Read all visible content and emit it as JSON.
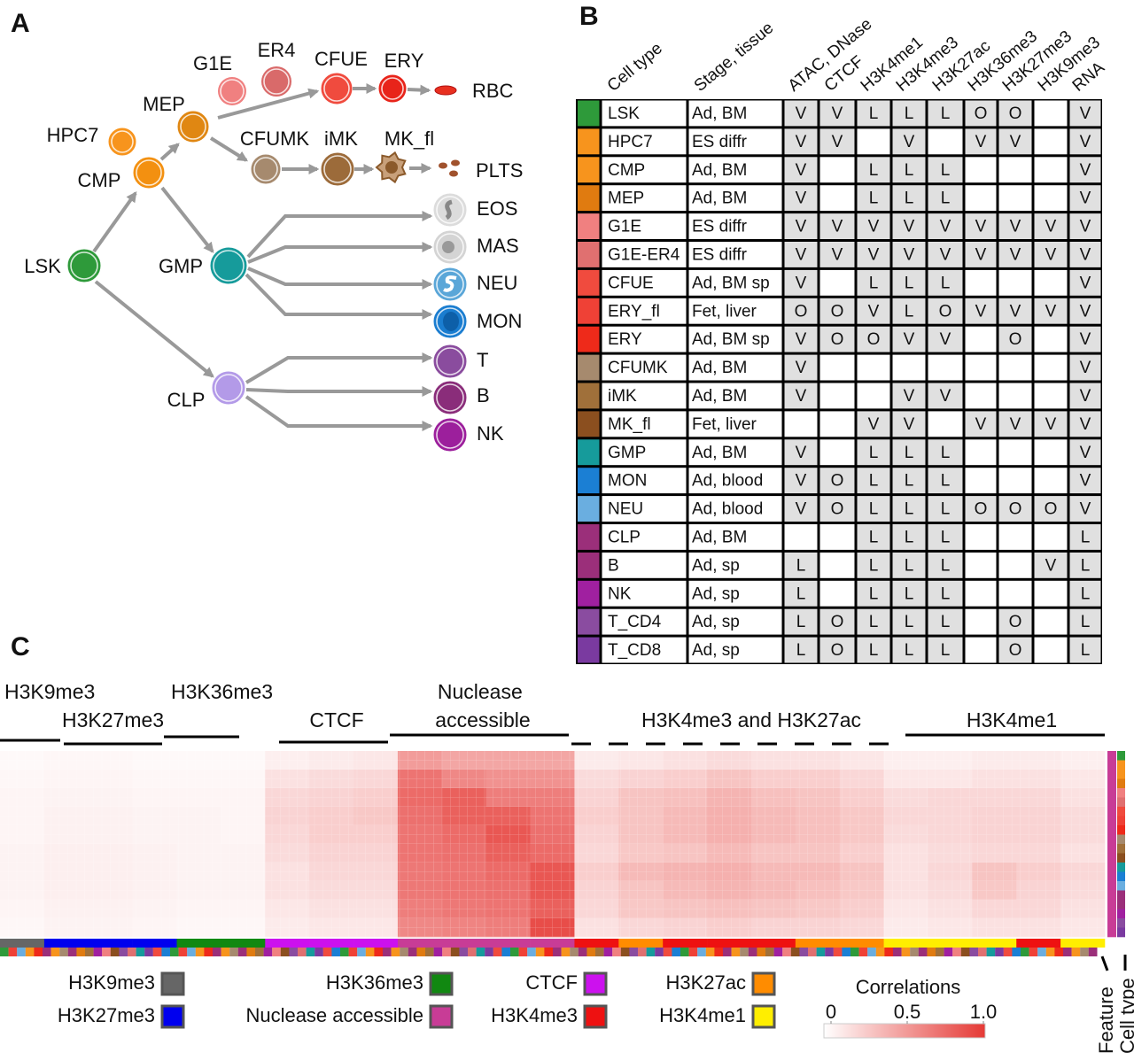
{
  "panels": {
    "a": "A",
    "b": "B",
    "c": "C"
  },
  "lineage": {
    "nodes": [
      {
        "label": "LSK",
        "color": "#2e9a3a"
      },
      {
        "label": "HPC7",
        "color": "#f7941d"
      },
      {
        "label": "CMP",
        "color": "#f39010"
      },
      {
        "label": "MEP",
        "color": "#e08712"
      },
      {
        "label": "G1E",
        "color": "#f08080"
      },
      {
        "label": "ER4",
        "color": "#d96a6a"
      },
      {
        "label": "CFUE",
        "color": "#f04b3e"
      },
      {
        "label": "ERY",
        "color": "#e8241a"
      },
      {
        "label": "RBC",
        "color": "#e83020"
      },
      {
        "label": "CFUMK",
        "color": "#a68a6e"
      },
      {
        "label": "iMK",
        "color": "#9c6b3a"
      },
      {
        "label": "MK_fl",
        "color": "#8b5a2b"
      },
      {
        "label": "PLTS",
        "color": "#a0522d"
      },
      {
        "label": "GMP",
        "color": "#169b9b"
      },
      {
        "label": "EOS",
        "color": "#dcdcdc"
      },
      {
        "label": "MAS",
        "color": "#d4d4d4"
      },
      {
        "label": "NEU",
        "color": "#5aa6d8"
      },
      {
        "label": "MON",
        "color": "#1a7dd0"
      },
      {
        "label": "CLP",
        "color": "#b39ae8"
      },
      {
        "label": "T",
        "color": "#8a4c9e"
      },
      {
        "label": "B",
        "color": "#8a2d7a"
      },
      {
        "label": "NK",
        "color": "#9c1f9c"
      }
    ]
  },
  "table": {
    "headers": [
      "Cell type",
      "Stage, tissue",
      "ATAC, DNase",
      "CTCF",
      "H3K4me1",
      "H3K4me3",
      "H3K27ac",
      "H3K36me3",
      "H3K27me3",
      "H3K9me3",
      "RNA"
    ],
    "rows": [
      {
        "color": "#2e9a3a",
        "cells": [
          "LSK",
          "Ad, BM",
          "V",
          "V",
          "L",
          "L",
          "L",
          "O",
          "O",
          null,
          "V"
        ]
      },
      {
        "color": "#f7941d",
        "cells": [
          "HPC7",
          "ES diffr",
          "V",
          "V",
          null,
          "V",
          null,
          "V",
          "V",
          null,
          "V"
        ]
      },
      {
        "color": "#f7941d",
        "cells": [
          "CMP",
          "Ad, BM",
          "V",
          null,
          "L",
          "L",
          "L",
          null,
          null,
          null,
          "V"
        ]
      },
      {
        "color": "#e07b10",
        "cells": [
          "MEP",
          "Ad, BM",
          "V",
          null,
          "L",
          "L",
          "L",
          null,
          null,
          null,
          "V"
        ]
      },
      {
        "color": "#f08080",
        "cells": [
          "G1E",
          "ES diffr",
          "V",
          "V",
          "V",
          "V",
          "V",
          "V",
          "V",
          "V",
          "V"
        ]
      },
      {
        "color": "#e07070",
        "cells": [
          "G1E-ER4",
          "ES diffr",
          "V",
          "V",
          "V",
          "V",
          "V",
          "V",
          "V",
          "V",
          "V"
        ]
      },
      {
        "color": "#f04b3e",
        "cells": [
          "CFUE",
          "Ad, BM sp",
          "V",
          null,
          "L",
          "L",
          "L",
          null,
          null,
          null,
          "V"
        ]
      },
      {
        "color": "#ef4136",
        "cells": [
          "ERY_fl",
          "Fet, liver",
          "O",
          "O",
          "V",
          "L",
          "O",
          "V",
          "V",
          "V",
          "V"
        ]
      },
      {
        "color": "#ee2a1a",
        "cells": [
          "ERY",
          "Ad, BM sp",
          "V",
          "O",
          "O",
          "V",
          "V",
          null,
          "O",
          null,
          "V"
        ]
      },
      {
        "color": "#a68a6e",
        "cells": [
          "CFUMK",
          "Ad, BM",
          "V",
          null,
          null,
          null,
          null,
          null,
          null,
          null,
          "V"
        ]
      },
      {
        "color": "#a0703a",
        "cells": [
          "iMK",
          "Ad, BM",
          "V",
          null,
          null,
          "V",
          "V",
          null,
          null,
          null,
          "V"
        ]
      },
      {
        "color": "#8b4f1f",
        "cells": [
          "MK_fl",
          "Fet, liver",
          null,
          null,
          "V",
          "V",
          null,
          "V",
          "V",
          "V",
          "V"
        ]
      },
      {
        "color": "#169b9b",
        "cells": [
          "GMP",
          "Ad, BM",
          "V",
          null,
          "L",
          "L",
          "L",
          null,
          null,
          null,
          "V"
        ]
      },
      {
        "color": "#1b7fd4",
        "cells": [
          "MON",
          "Ad, blood",
          "V",
          "O",
          "L",
          "L",
          "L",
          null,
          null,
          null,
          "V"
        ]
      },
      {
        "color": "#6aaee0",
        "cells": [
          "NEU",
          "Ad, blood",
          "V",
          "O",
          "L",
          "L",
          "L",
          "O",
          "O",
          "O",
          "V"
        ]
      },
      {
        "color": "#9b2f7a",
        "cells": [
          "CLP",
          "Ad, BM",
          null,
          null,
          "L",
          "L",
          "L",
          null,
          null,
          null,
          "L"
        ]
      },
      {
        "color": "#9b2f7a",
        "cells": [
          "B",
          "Ad, sp",
          "L",
          null,
          "L",
          "L",
          "L",
          null,
          null,
          "V",
          "L"
        ]
      },
      {
        "color": "#a020a0",
        "cells": [
          "NK",
          "Ad, sp",
          "L",
          null,
          "L",
          "L",
          "L",
          null,
          null,
          null,
          "L"
        ]
      },
      {
        "color": "#8a4ca0",
        "cells": [
          "T_CD4",
          "Ad, sp",
          "L",
          "O",
          "L",
          "L",
          "L",
          null,
          "O",
          null,
          "L"
        ]
      },
      {
        "color": "#7a3aa0",
        "cells": [
          "T_CD8",
          "Ad, sp",
          "L",
          "O",
          "L",
          "L",
          "L",
          null,
          "O",
          null,
          "L"
        ]
      }
    ]
  },
  "heatmap": {
    "group_labels": [
      "H3K9me3",
      "H3K27me3",
      "H3K36me3",
      "CTCF",
      "Nuclease accessible",
      "H3K4me3 and H3K27ac",
      "H3K4me1"
    ],
    "low_color": "#ffffff",
    "high_color": "#e53935",
    "values": [
      [
        0.03,
        0.04,
        0.04,
        0.03,
        0.03,
        0.03,
        0.08,
        0.1,
        0.12,
        0.5,
        0.45,
        0.45,
        0.45,
        0.1,
        0.12,
        0.15,
        0.18,
        0.15,
        0.15,
        0.12,
        0.08,
        0.08,
        0.1,
        0.1,
        0.08
      ],
      [
        0.04,
        0.05,
        0.05,
        0.04,
        0.04,
        0.04,
        0.15,
        0.18,
        0.2,
        0.7,
        0.6,
        0.55,
        0.55,
        0.18,
        0.22,
        0.25,
        0.3,
        0.25,
        0.25,
        0.2,
        0.12,
        0.12,
        0.15,
        0.15,
        0.12
      ],
      [
        0.05,
        0.06,
        0.06,
        0.05,
        0.05,
        0.05,
        0.2,
        0.22,
        0.25,
        0.75,
        0.8,
        0.65,
        0.65,
        0.22,
        0.3,
        0.32,
        0.38,
        0.32,
        0.3,
        0.25,
        0.18,
        0.2,
        0.2,
        0.2,
        0.15
      ],
      [
        0.05,
        0.07,
        0.07,
        0.06,
        0.06,
        0.05,
        0.22,
        0.25,
        0.28,
        0.72,
        0.8,
        0.8,
        0.7,
        0.25,
        0.3,
        0.35,
        0.4,
        0.35,
        0.32,
        0.28,
        0.2,
        0.2,
        0.22,
        0.22,
        0.18
      ],
      [
        0.05,
        0.07,
        0.07,
        0.06,
        0.06,
        0.05,
        0.2,
        0.25,
        0.25,
        0.7,
        0.75,
        0.85,
        0.72,
        0.22,
        0.3,
        0.35,
        0.4,
        0.35,
        0.32,
        0.28,
        0.18,
        0.2,
        0.22,
        0.22,
        0.18
      ],
      [
        0.06,
        0.08,
        0.08,
        0.07,
        0.06,
        0.06,
        0.18,
        0.22,
        0.22,
        0.7,
        0.72,
        0.8,
        0.75,
        0.2,
        0.28,
        0.3,
        0.35,
        0.3,
        0.3,
        0.25,
        0.15,
        0.18,
        0.2,
        0.2,
        0.15
      ],
      [
        0.06,
        0.08,
        0.08,
        0.07,
        0.06,
        0.06,
        0.15,
        0.2,
        0.2,
        0.68,
        0.7,
        0.75,
        0.85,
        0.25,
        0.35,
        0.38,
        0.4,
        0.35,
        0.35,
        0.3,
        0.15,
        0.2,
        0.3,
        0.25,
        0.2
      ],
      [
        0.06,
        0.08,
        0.08,
        0.07,
        0.06,
        0.06,
        0.15,
        0.18,
        0.18,
        0.68,
        0.7,
        0.72,
        0.85,
        0.22,
        0.3,
        0.35,
        0.38,
        0.35,
        0.32,
        0.28,
        0.15,
        0.18,
        0.28,
        0.22,
        0.18
      ],
      [
        0.05,
        0.07,
        0.07,
        0.06,
        0.05,
        0.05,
        0.12,
        0.15,
        0.15,
        0.65,
        0.68,
        0.7,
        0.8,
        0.2,
        0.28,
        0.3,
        0.32,
        0.3,
        0.28,
        0.25,
        0.12,
        0.15,
        0.2,
        0.2,
        0.15
      ],
      [
        0.04,
        0.06,
        0.06,
        0.05,
        0.04,
        0.04,
        0.1,
        0.12,
        0.12,
        0.6,
        0.62,
        0.65,
        0.9,
        0.15,
        0.2,
        0.22,
        0.25,
        0.22,
        0.22,
        0.2,
        0.1,
        0.12,
        0.15,
        0.15,
        0.12
      ]
    ],
    "feature_bar": [
      "#666666",
      "#0000ee",
      "#0000ee",
      "#0000ee",
      "#118811",
      "#118811",
      "#cc11ee",
      "#cc11ee",
      "#cc11ee",
      "#c83c96",
      "#c83c96",
      "#c83c96",
      "#c83c96",
      "#ee1111",
      "#ff8c00",
      "#ee1111",
      "#ee1111",
      "#ee1111",
      "#ff8c00",
      "#ff8c00",
      "#ffee00",
      "#ffee00",
      "#ffee00",
      "#ee1111",
      "#ffee00"
    ],
    "legend": [
      {
        "label": "H3K9me3",
        "color": "#666666"
      },
      {
        "label": "H3K27me3",
        "color": "#0000ee"
      },
      {
        "label": "H3K36me3",
        "color": "#118811"
      },
      {
        "label": "Nuclease accessible",
        "color": "#c83c96"
      },
      {
        "label": "CTCF",
        "color": "#cc11ee"
      },
      {
        "label": "H3K4me3",
        "color": "#ee1111"
      },
      {
        "label": "H3K27ac",
        "color": "#ff8c00"
      },
      {
        "label": "H3K4me1",
        "color": "#ffee00"
      }
    ],
    "colorbar_title": "Correlations",
    "colorbar_ticks": [
      0,
      0.5,
      {
        "value": 1,
        "label": "1.0"
      }
    ],
    "side_labels": [
      "Feature",
      "Cell type"
    ]
  }
}
